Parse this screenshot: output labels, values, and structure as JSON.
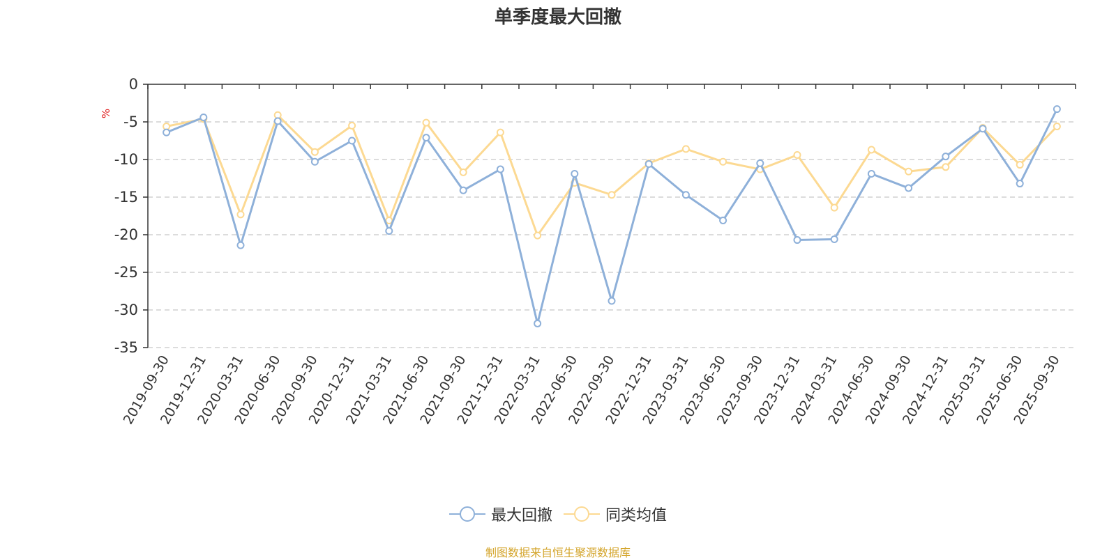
{
  "chart_data": {
    "type": "line",
    "title": "单季度最大回撤",
    "ylabel": "%",
    "ylim": [
      -35,
      0
    ],
    "yticks": [
      0,
      -5,
      -10,
      -15,
      -20,
      -25,
      -30,
      -35
    ],
    "grid": true,
    "legend_position": "bottom",
    "x": [
      "2019-09-30",
      "2019-12-31",
      "2020-03-31",
      "2020-06-30",
      "2020-09-30",
      "2020-12-31",
      "2021-03-31",
      "2021-06-30",
      "2021-09-30",
      "2021-12-31",
      "2022-03-31",
      "2022-06-30",
      "2022-09-30",
      "2022-12-31",
      "2023-03-31",
      "2023-06-30",
      "2023-09-30",
      "2023-12-31",
      "2024-03-31",
      "2024-06-30",
      "2024-09-30",
      "2024-12-31",
      "2025-03-31",
      "2025-06-30",
      "2025-09-30"
    ],
    "series": [
      {
        "name": "最大回撤",
        "color": "#8eb0d9",
        "values": [
          -6.4,
          -4.4,
          -21.4,
          -4.9,
          -10.3,
          -7.5,
          -19.5,
          -7.1,
          -14.1,
          -11.3,
          -31.8,
          -11.9,
          -28.8,
          -10.6,
          -14.7,
          -18.1,
          -10.5,
          -20.7,
          -20.6,
          -11.9,
          -13.8,
          -9.6,
          -5.9,
          -13.2,
          -3.3
        ]
      },
      {
        "name": "同类均值",
        "color": "#fcd992",
        "values": [
          -5.6,
          -4.6,
          -17.3,
          -4.1,
          -9.0,
          -5.5,
          -18.1,
          -5.1,
          -11.7,
          -6.4,
          -20.1,
          -13.1,
          -14.7,
          -10.5,
          -8.6,
          -10.3,
          -11.3,
          -9.4,
          -16.4,
          -8.7,
          -11.6,
          -11.0,
          -5.8,
          -10.7,
          -5.6
        ]
      }
    ],
    "source_note": "制图数据来自恒生聚源数据库",
    "source_color": "#d4a52c",
    "ylabel_color": "#e02020"
  }
}
